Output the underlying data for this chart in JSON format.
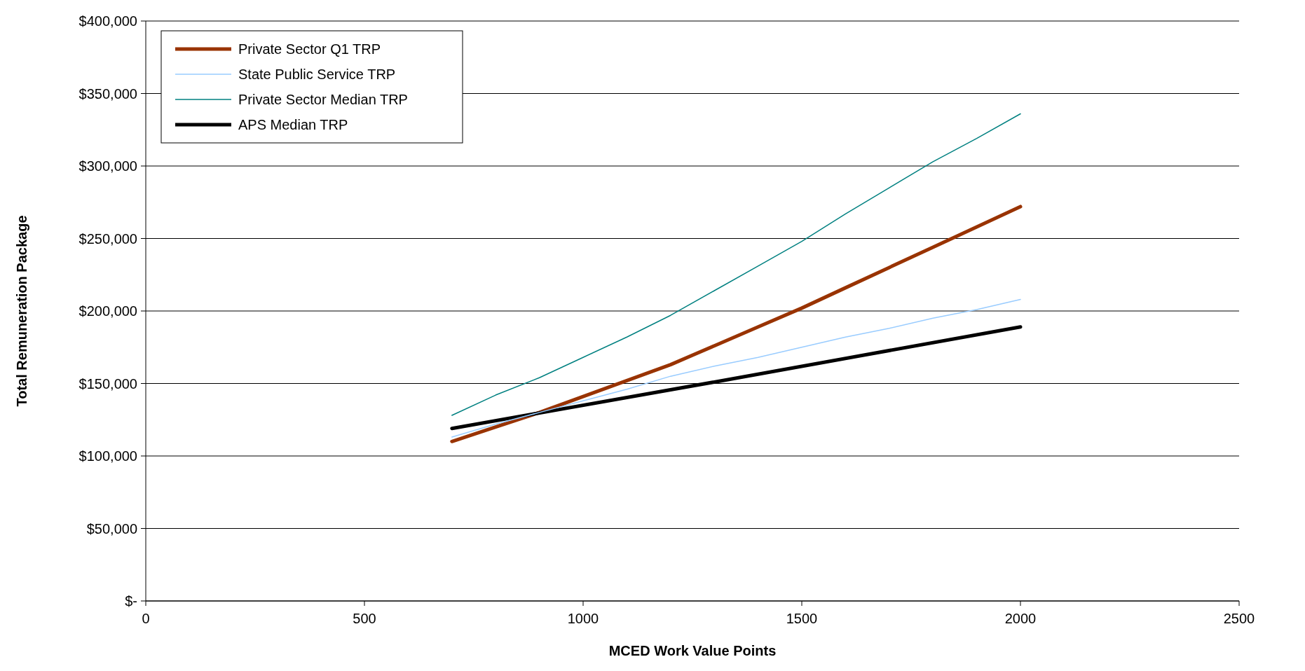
{
  "chart_data": {
    "type": "line",
    "xlabel": "MCED Work Value Points",
    "ylabel": "Total Remuneration Package",
    "xlim": [
      0,
      2500
    ],
    "xticks": [
      0,
      500,
      1000,
      1500,
      2000,
      2500
    ],
    "ylim": [
      0,
      400000
    ],
    "yticks": [
      {
        "value": 0,
        "label": "$-"
      },
      {
        "value": 50000,
        "label": "$50,000"
      },
      {
        "value": 100000,
        "label": "$100,000"
      },
      {
        "value": 150000,
        "label": "$150,000"
      },
      {
        "value": 200000,
        "label": "$200,000"
      },
      {
        "value": 250000,
        "label": "$250,000"
      },
      {
        "value": 300000,
        "label": "$300,000"
      },
      {
        "value": 350000,
        "label": "$350,000"
      },
      {
        "value": 400000,
        "label": "$400,000"
      }
    ],
    "grid": "y",
    "legend": "top left",
    "marker": "none",
    "line_style": "solid",
    "x": [
      700,
      800,
      900,
      1000,
      1100,
      1200,
      1300,
      1400,
      1500,
      1600,
      1700,
      1800,
      1900,
      2000
    ],
    "series": [
      {
        "name": "Private Sector Q1 TRP",
        "color": "#993300",
        "values": [
          110000,
          120000,
          130000,
          141000,
          152000,
          163000,
          176000,
          189000,
          202000,
          216000,
          230000,
          244000,
          258000,
          272000
        ]
      },
      {
        "name": "State Public Service TRP",
        "color": "#99ccff",
        "values": [
          113000,
          122000,
          130000,
          138000,
          146000,
          155000,
          162000,
          168000,
          175000,
          182000,
          188000,
          195000,
          201000,
          208000
        ]
      },
      {
        "name": "Private Sector Median TRP",
        "color": "#008080",
        "values": [
          128000,
          142000,
          154000,
          168000,
          182000,
          197000,
          214000,
          231000,
          248000,
          267000,
          285000,
          303000,
          319000,
          336000
        ]
      },
      {
        "name": "APS Median TRP",
        "color": "#000000",
        "x": [
          700,
          1300,
          2000
        ],
        "values": [
          119000,
          151000,
          189000
        ]
      }
    ]
  }
}
